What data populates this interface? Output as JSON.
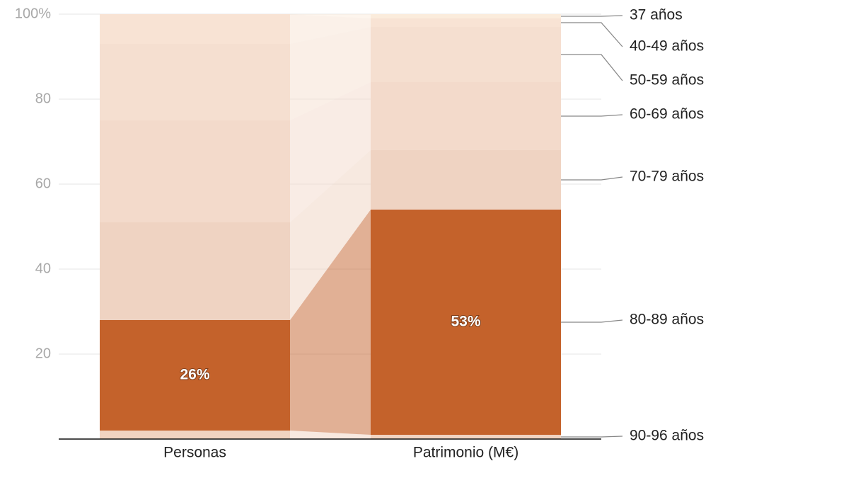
{
  "chart_data": {
    "type": "stacked_bar",
    "categories": [
      "Personas",
      "Patrimonio (M€)"
    ],
    "series": [
      {
        "name": "90-96 años",
        "color": "#f1d3c1",
        "values": [
          2,
          1
        ]
      },
      {
        "name": "80-89 años",
        "color": "#c4622b",
        "values": [
          26,
          53
        ],
        "value_labels": [
          "26%",
          "53%"
        ]
      },
      {
        "name": "70-79 años",
        "color": "#efd3c2",
        "values": [
          23,
          14
        ]
      },
      {
        "name": "60-69 años",
        "color": "#f3dacb",
        "values": [
          24,
          16
        ]
      },
      {
        "name": "50-59 años",
        "color": "#f5dfd0",
        "values": [
          18,
          13
        ]
      },
      {
        "name": "40-49 años",
        "color": "#f8e3d4",
        "values": [
          7,
          2
        ]
      },
      {
        "name": "37 años",
        "color": "#fbecdc",
        "values": [
          0,
          1
        ]
      }
    ],
    "ylim": [
      0,
      100
    ],
    "yticks": [
      20,
      40,
      60,
      80,
      {
        "value": 100,
        "label": "100%"
      }
    ],
    "grid": true
  }
}
